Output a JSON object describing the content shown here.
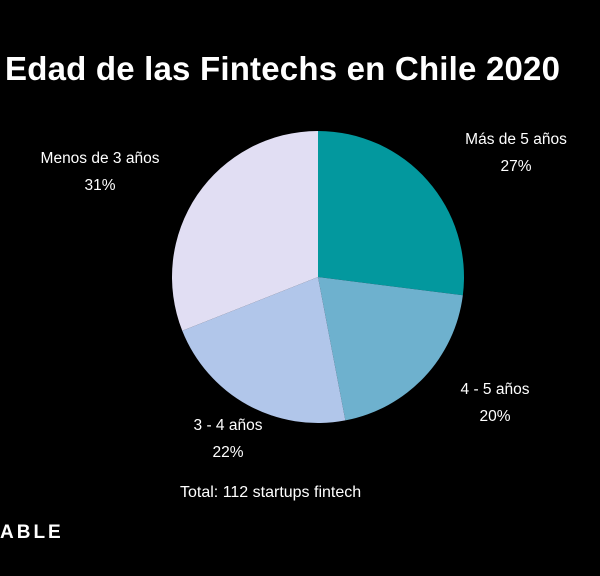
{
  "chart_data": {
    "type": "pie",
    "title": "Edad de las Fintechs en Chile 2020",
    "slices": [
      {
        "label": "Más de 5 años",
        "value": 27,
        "display": "27%",
        "color": "#03989E"
      },
      {
        "label": "4 - 5 años",
        "value": 20,
        "display": "20%",
        "color": "#6EB1CE"
      },
      {
        "label": "3 - 4 años",
        "value": 22,
        "display": "22%",
        "color": "#B1C6EA"
      },
      {
        "label": "Menos de 3 años",
        "value": 31,
        "display": "31%",
        "color": "#E1DEF3"
      }
    ],
    "start_angle_deg": 0,
    "direction": "clockwise",
    "note": "Total: 112 startups fintech"
  },
  "footer": {
    "brand": "ABLE"
  }
}
